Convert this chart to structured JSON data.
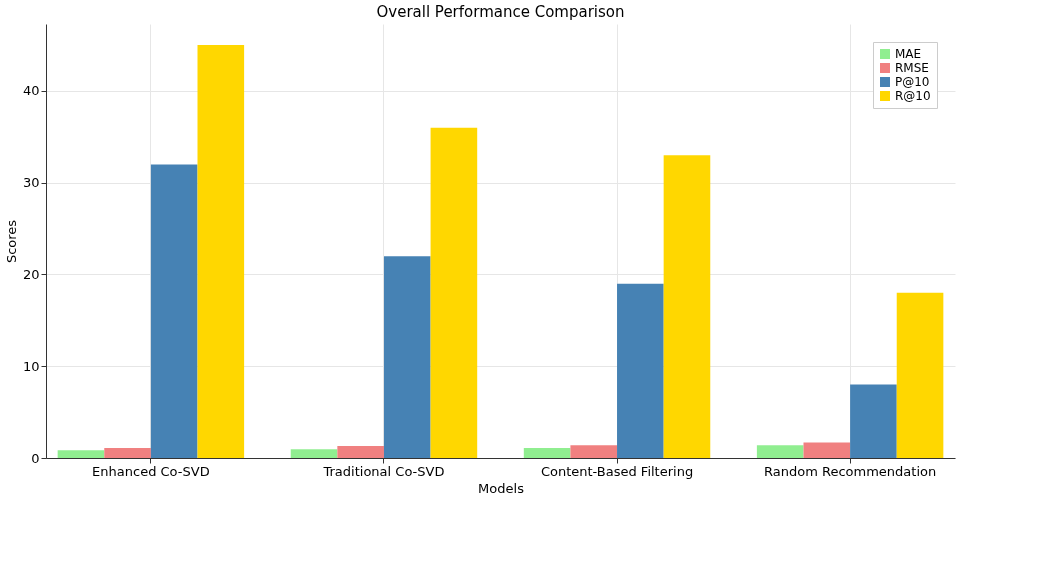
{
  "chart_data": {
    "type": "bar",
    "title": "Overall Performance Comparison",
    "xlabel": "Models",
    "ylabel": "Scores",
    "categories": [
      "Enhanced Co-SVD",
      "Traditional Co-SVD",
      "Content-Based Filtering",
      "Random Recommendation"
    ],
    "series": [
      {
        "name": "MAE",
        "color": "#90ee90",
        "values": [
          0.85,
          0.95,
          1.1,
          1.4
        ]
      },
      {
        "name": "RMSE",
        "color": "#f08080",
        "values": [
          1.1,
          1.3,
          1.4,
          1.7
        ]
      },
      {
        "name": "P@10",
        "color": "#4682b4",
        "values": [
          32,
          22,
          19,
          8
        ]
      },
      {
        "name": "R@10",
        "color": "#ffd700",
        "values": [
          45,
          36,
          33,
          18
        ]
      }
    ],
    "ylim": [
      0,
      47.3
    ],
    "yticks": [
      0,
      10,
      20,
      30,
      40
    ],
    "grid": true,
    "legend": "top right"
  }
}
